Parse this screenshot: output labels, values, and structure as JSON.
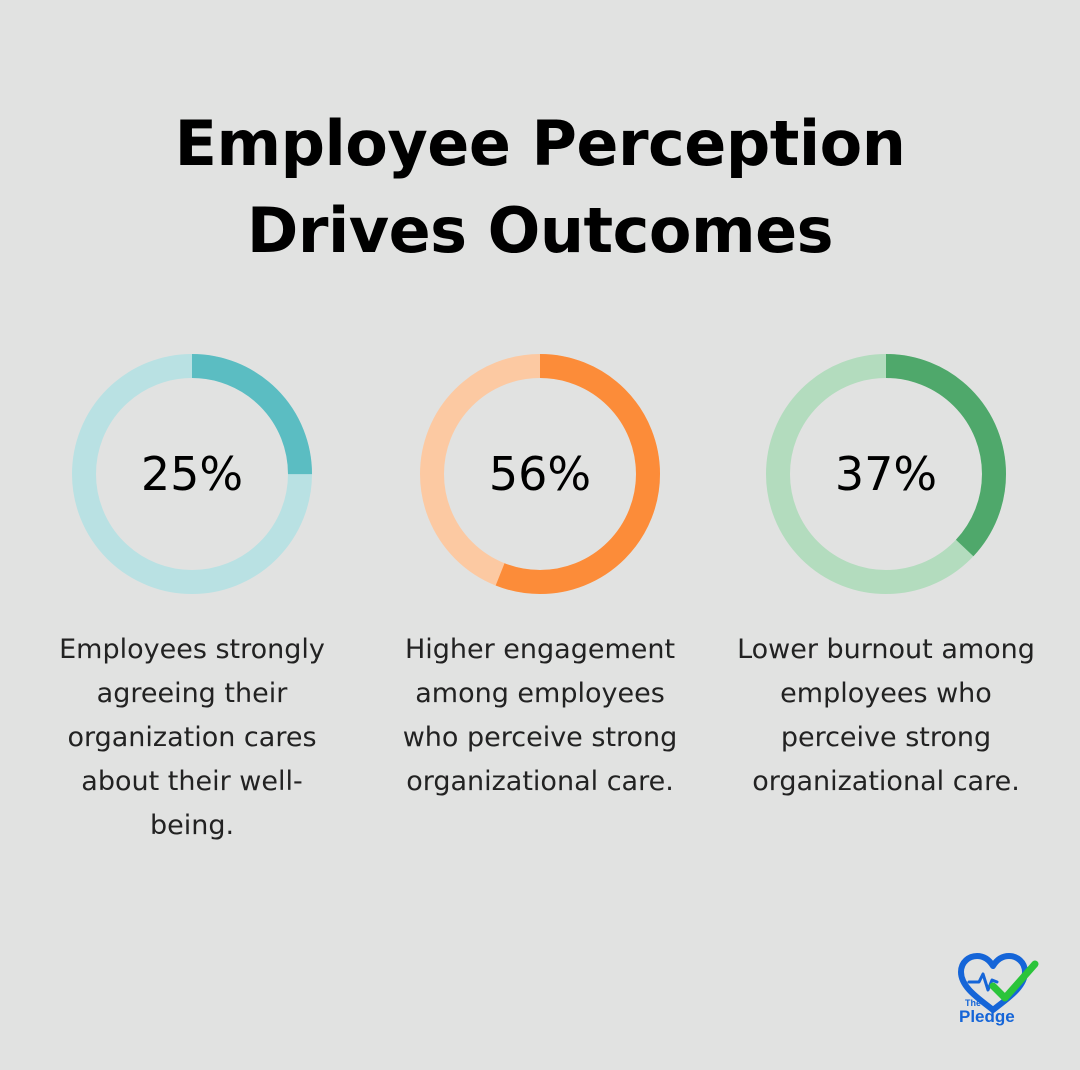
{
  "title_line1": "Employee Perception",
  "title_line2": "Drives Outcomes",
  "chart_data": [
    {
      "type": "pie",
      "value": 25,
      "label": "25%",
      "caption": "Employees strongly agreeing their organization cares about their well-being.",
      "color": "#5bbdc2",
      "track_color": "#b9e1e3"
    },
    {
      "type": "pie",
      "value": 56,
      "label": "56%",
      "caption": "Higher engagement among employees who perceive strong organizational care.",
      "color": "#fc8c39",
      "track_color": "#fcc9a2"
    },
    {
      "type": "pie",
      "value": 37,
      "label": "37%",
      "caption": "Lower burnout among employees who perceive strong organizational care.",
      "color": "#4fa86b",
      "track_color": "#b3dcbe"
    }
  ],
  "logo": {
    "small_text": "The",
    "name": "Pledge",
    "heart_color": "#1565d8",
    "check_color": "#2bc43a"
  }
}
